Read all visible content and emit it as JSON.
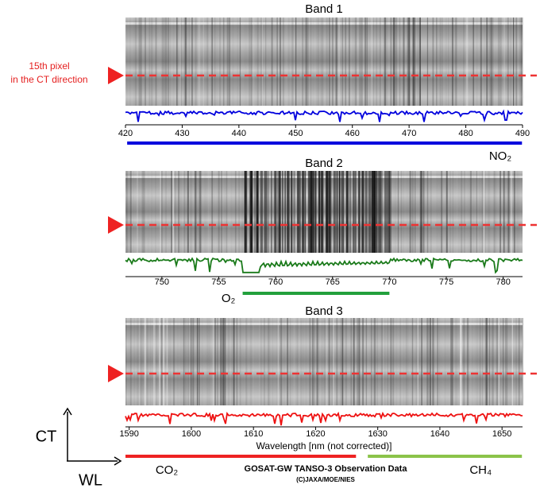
{
  "chart_data": [
    {
      "type": "line",
      "title": "Band 1",
      "xlim": [
        420,
        490
      ],
      "xticks": [
        420,
        430,
        440,
        450,
        460,
        470,
        480,
        490
      ],
      "color": "#0000dd",
      "species": [
        {
          "label": "NO₂",
          "range": [
            420.3,
            489.9
          ],
          "color": "#0000dd"
        }
      ]
    },
    {
      "type": "line",
      "title": "Band 2",
      "xlim": [
        746.8,
        781.7
      ],
      "xticks": [
        750,
        755,
        760,
        765,
        770,
        775,
        780
      ],
      "color": "#1a7a1a",
      "species": [
        {
          "label": "O₂",
          "range": [
            757.1,
            770.0
          ],
          "color": "#22a03c"
        }
      ]
    },
    {
      "type": "line",
      "title": "Band 3",
      "xlim": [
        1589.4,
        1653.3
      ],
      "xticks": [
        1590,
        1600,
        1610,
        1620,
        1630,
        1640,
        1650
      ],
      "color": "#ee1111",
      "xlabel": "Wavelength [nm (not corrected)]",
      "species": [
        {
          "label": "CO₂",
          "range": [
            1589.4,
            1626.5
          ],
          "color": "#ee2222"
        },
        {
          "label": "CH₄",
          "range": [
            1628.4,
            1653.2
          ],
          "color": "#8bc34a"
        }
      ]
    }
  ],
  "pixel_label": [
    "15th pixel",
    "in the CT direction"
  ],
  "direction_labels": {
    "ct": "CT",
    "wl": "WL"
  },
  "credit": {
    "title": "GOSAT-GW TANSO-3 Observation Data",
    "copyright": "(C)JAXA/MOE/NIES"
  }
}
